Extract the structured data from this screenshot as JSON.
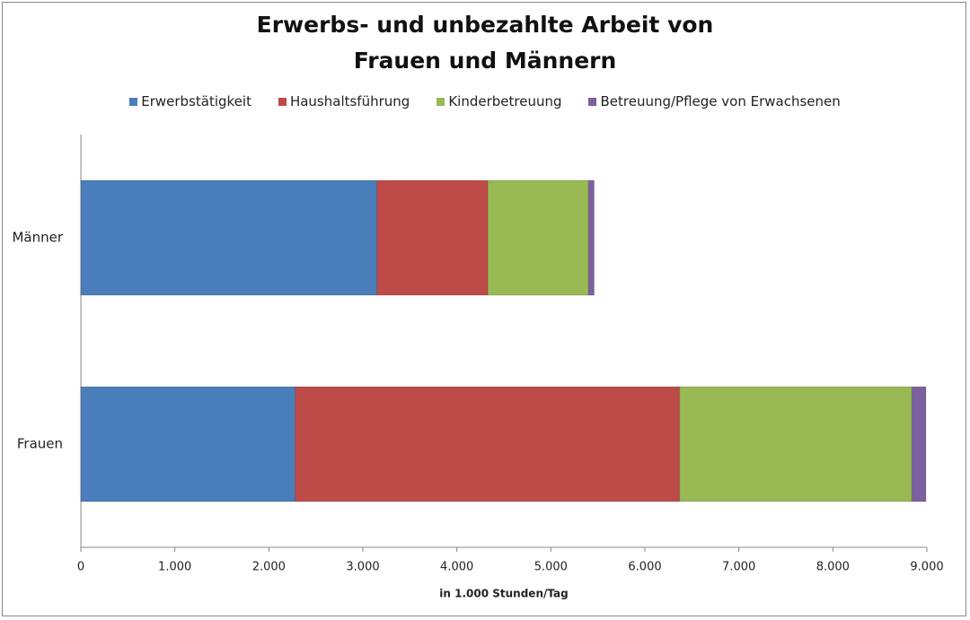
{
  "chart_data": {
    "type": "stacked-barh",
    "title": "Erwerbs- und unbezahlte Arbeit von Frauen und Männern",
    "xlabel": "in 1.000 Stunden/Tag",
    "categories": [
      "Männer",
      "Frauen"
    ],
    "series": [
      {
        "name": "Erwerbstätigkeit",
        "color": "#4a7ebb",
        "values": [
          3150,
          2280
        ]
      },
      {
        "name": "Haushaltsführung",
        "color": "#be4b48",
        "values": [
          1180,
          4090
        ]
      },
      {
        "name": "Kinderbetreuung",
        "color": "#98b954",
        "values": [
          1070,
          2470
        ]
      },
      {
        "name": "Betreuung/Pflege von Erwachsenen",
        "color": "#7d60a0",
        "values": [
          60,
          150
        ]
      }
    ],
    "xlim": [
      0,
      9000
    ],
    "xticks": [
      0,
      {
        "value": 1000,
        "label": "1.000"
      },
      {
        "value": 2000,
        "label": "2.000"
      },
      {
        "value": 3000,
        "label": "3.000"
      },
      {
        "value": 4000,
        "label": "4.000"
      },
      {
        "value": 5000,
        "label": "5.000"
      },
      {
        "value": 6000,
        "label": "6.000"
      },
      {
        "value": 7000,
        "label": "7.000"
      },
      {
        "value": 8000,
        "label": "8.000"
      },
      {
        "value": 9000,
        "label": "9.000"
      }
    ],
    "legend": "top"
  }
}
